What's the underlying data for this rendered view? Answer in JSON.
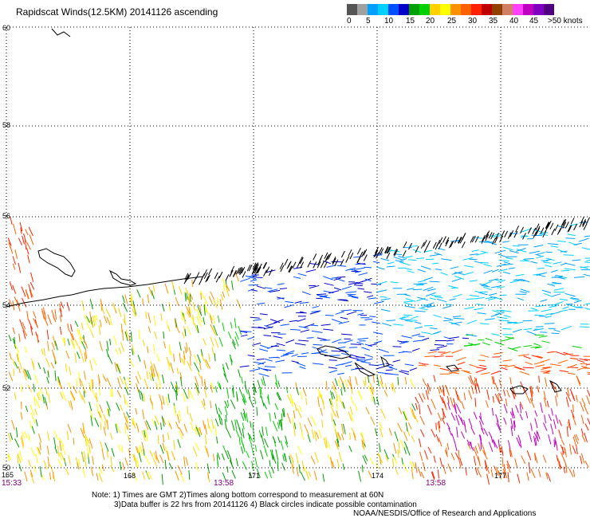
{
  "title": "Rapidscat Winds(12.5KM) 20141126 ascending",
  "color_scale": {
    "colors": [
      "#555555",
      "#a0a0a0",
      "#00a0ff",
      "#00d0ff",
      "#0050ff",
      "#0000c8",
      "#00a000",
      "#00d000",
      "#ffd000",
      "#ffff00",
      "#ff9000",
      "#ff6000",
      "#ff2000",
      "#c00000",
      "#904000",
      "#d08060",
      "#ff40ff",
      "#c000c0",
      "#8000c0",
      "#500080"
    ],
    "labels": [
      "0",
      "5",
      "10",
      "15",
      "20",
      "25",
      "30",
      "35",
      "40",
      "45",
      ">50 knots"
    ]
  },
  "lat_labels": [
    "60",
    "58",
    "56",
    "54",
    "52",
    "50"
  ],
  "lon_labels": [
    "165",
    "168",
    "171",
    "174",
    "177"
  ],
  "time_labels": [
    "15:33",
    "13:58",
    "13:58"
  ],
  "notes": [
    "Note: 1) Times are GMT 2)Times along bottom correspond to measurement at 60N",
    "3)Data buffer is 22 hrs from 20141126 4) Black circles indicate possible contamination",
    "NOAA/NESDIS/Office of Research and Applications"
  ]
}
